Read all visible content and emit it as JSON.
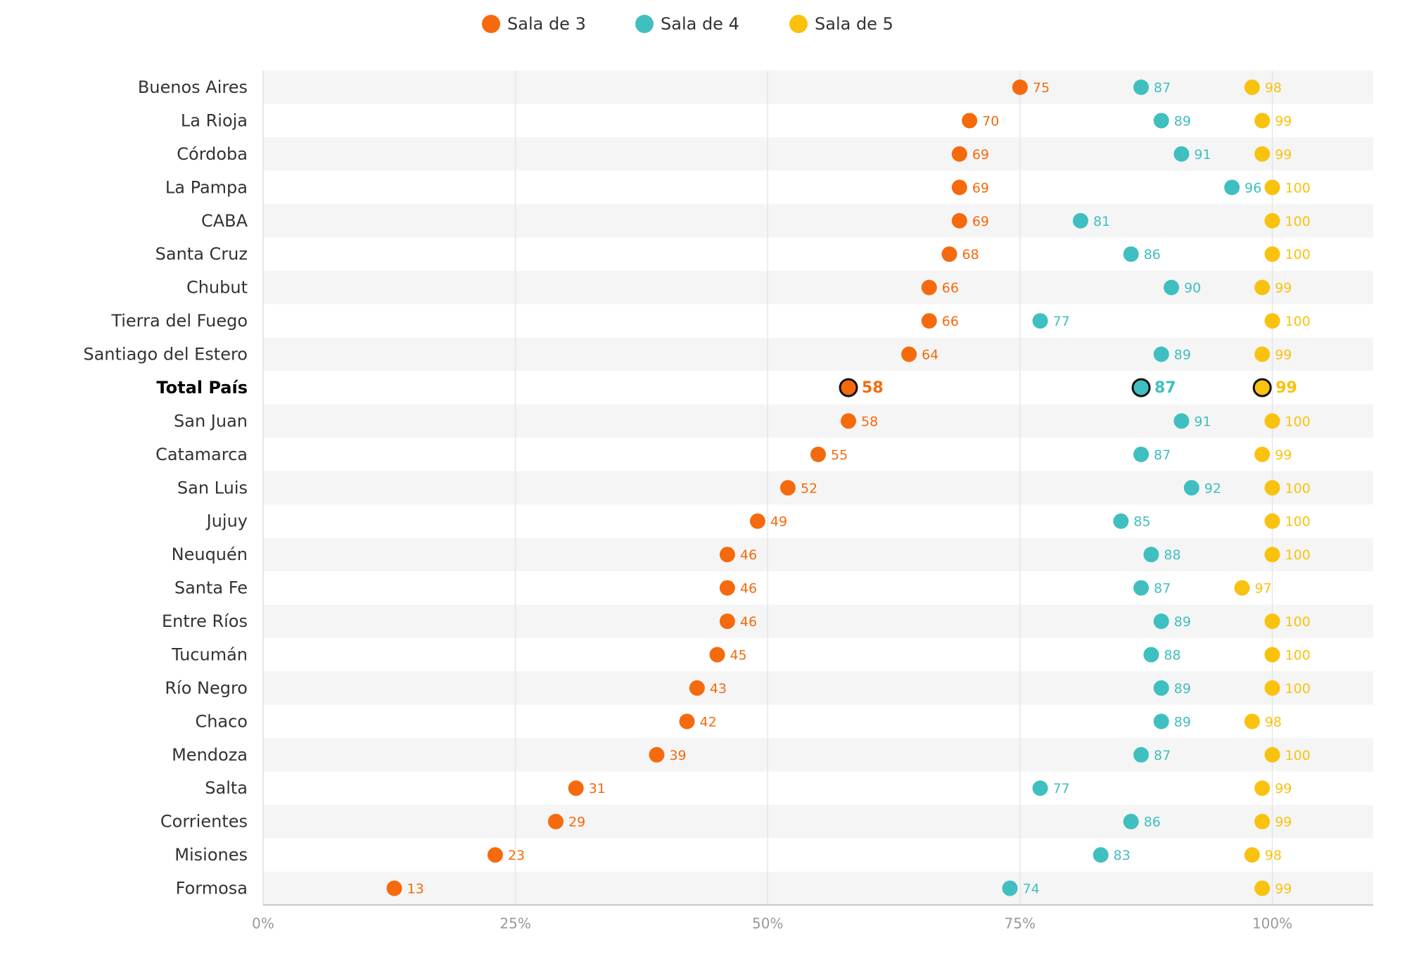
{
  "chart_data": {
    "type": "scatter",
    "orientation": "horizontal dot plot",
    "title": "",
    "xlabel": "",
    "ylabel": "",
    "xlim": [
      0,
      110
    ],
    "x_ticks": [
      {
        "value": 0,
        "label": "0%"
      },
      {
        "value": 25,
        "label": "25%"
      },
      {
        "value": 50,
        "label": "50%"
      },
      {
        "value": 75,
        "label": "75%"
      },
      {
        "value": 100,
        "label": "100%"
      }
    ],
    "grid": true,
    "legend_position": "top-center",
    "highlight_category": "Total País",
    "categories": [
      "Buenos Aires",
      "La Rioja",
      "Córdoba",
      "La Pampa",
      "CABA",
      "Santa Cruz",
      "Chubut",
      "Tierra del Fuego",
      "Santiago del Estero",
      "Total País",
      "San Juan",
      "Catamarca",
      "San Luis",
      "Jujuy",
      "Neuquén",
      "Santa Fe",
      "Entre Ríos",
      "Tucumán",
      "Río Negro",
      "Chaco",
      "Mendoza",
      "Salta",
      "Corrientes",
      "Misiones",
      "Formosa"
    ],
    "series": [
      {
        "name": "Sala de 3",
        "color": "#F56A0D",
        "values": [
          75,
          70,
          69,
          69,
          69,
          68,
          66,
          66,
          64,
          58,
          58,
          55,
          52,
          49,
          46,
          46,
          46,
          45,
          43,
          42,
          39,
          31,
          29,
          23,
          13
        ]
      },
      {
        "name": "Sala de 4",
        "color": "#3FBFC0",
        "values": [
          87,
          89,
          91,
          96,
          81,
          86,
          90,
          77,
          89,
          87,
          91,
          87,
          92,
          85,
          88,
          87,
          89,
          88,
          89,
          89,
          87,
          77,
          86,
          83,
          74
        ]
      },
      {
        "name": "Sala de 5",
        "color": "#F9C20F",
        "values": [
          98,
          99,
          99,
          100,
          100,
          100,
          99,
          100,
          99,
          99,
          100,
          99,
          100,
          100,
          100,
          97,
          100,
          100,
          100,
          98,
          100,
          99,
          99,
          98,
          99
        ]
      }
    ]
  }
}
